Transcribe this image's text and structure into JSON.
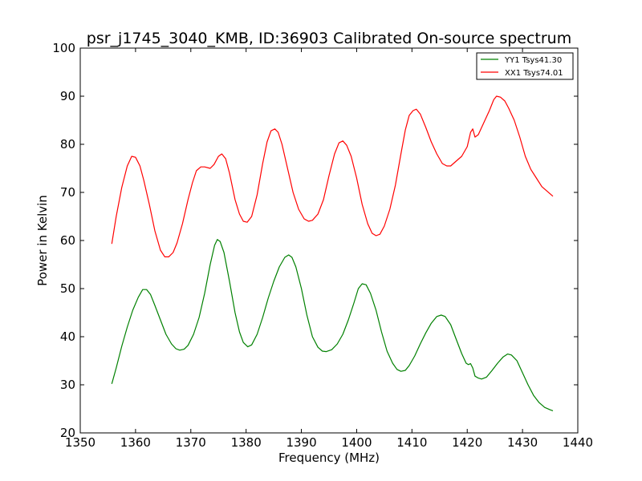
{
  "chart_data": {
    "type": "line",
    "title": "psr_j1745_3040_KMB, ID:36903 Calibrated On-source spectrum",
    "xlabel": "Frequency (MHz)",
    "ylabel": "Power in Kelvin",
    "xlim": [
      1350,
      1440
    ],
    "ylim": [
      20,
      100
    ],
    "xticks": [
      1350,
      1360,
      1370,
      1380,
      1390,
      1400,
      1410,
      1420,
      1430,
      1440
    ],
    "yticks": [
      20,
      30,
      40,
      50,
      60,
      70,
      80,
      90,
      100
    ],
    "grid": false,
    "legend_position": "top-right",
    "series": [
      {
        "name": "YY1 Tsys41.30",
        "color": "#008000",
        "points": [
          [
            1355.7,
            30.2
          ],
          [
            1356.5,
            33.5
          ],
          [
            1357.5,
            38.0
          ],
          [
            1358.5,
            42.0
          ],
          [
            1359.5,
            45.5
          ],
          [
            1360.5,
            48.2
          ],
          [
            1361.3,
            49.8
          ],
          [
            1362.0,
            49.8
          ],
          [
            1362.7,
            48.8
          ],
          [
            1363.5,
            46.5
          ],
          [
            1364.5,
            43.5
          ],
          [
            1365.5,
            40.5
          ],
          [
            1366.5,
            38.5
          ],
          [
            1367.3,
            37.5
          ],
          [
            1368.0,
            37.2
          ],
          [
            1368.8,
            37.4
          ],
          [
            1369.5,
            38.2
          ],
          [
            1370.5,
            40.5
          ],
          [
            1371.5,
            44.0
          ],
          [
            1372.5,
            49.0
          ],
          [
            1373.5,
            55.0
          ],
          [
            1374.3,
            59.0
          ],
          [
            1374.8,
            60.2
          ],
          [
            1375.3,
            59.8
          ],
          [
            1376.0,
            57.5
          ],
          [
            1377.0,
            51.5
          ],
          [
            1378.0,
            45.0
          ],
          [
            1378.8,
            41.0
          ],
          [
            1379.5,
            38.8
          ],
          [
            1380.3,
            37.9
          ],
          [
            1381.0,
            38.3
          ],
          [
            1382.0,
            40.5
          ],
          [
            1383.0,
            44.0
          ],
          [
            1384.0,
            48.0
          ],
          [
            1385.0,
            51.5
          ],
          [
            1386.0,
            54.5
          ],
          [
            1387.0,
            56.5
          ],
          [
            1387.7,
            57.0
          ],
          [
            1388.3,
            56.5
          ],
          [
            1389.0,
            54.5
          ],
          [
            1390.0,
            50.0
          ],
          [
            1391.0,
            44.5
          ],
          [
            1392.0,
            40.0
          ],
          [
            1393.0,
            37.8
          ],
          [
            1393.8,
            37.0
          ],
          [
            1394.5,
            36.9
          ],
          [
            1395.5,
            37.3
          ],
          [
            1396.5,
            38.5
          ],
          [
            1397.5,
            40.5
          ],
          [
            1398.5,
            43.5
          ],
          [
            1399.5,
            47.0
          ],
          [
            1400.3,
            50.0
          ],
          [
            1401.0,
            51.0
          ],
          [
            1401.7,
            50.8
          ],
          [
            1402.5,
            49.0
          ],
          [
            1403.5,
            45.5
          ],
          [
            1404.5,
            41.0
          ],
          [
            1405.5,
            37.0
          ],
          [
            1406.5,
            34.5
          ],
          [
            1407.3,
            33.2
          ],
          [
            1408.0,
            32.8
          ],
          [
            1408.8,
            33.0
          ],
          [
            1409.5,
            34.0
          ],
          [
            1410.5,
            36.0
          ],
          [
            1411.5,
            38.5
          ],
          [
            1412.5,
            40.8
          ],
          [
            1413.5,
            42.8
          ],
          [
            1414.5,
            44.2
          ],
          [
            1415.3,
            44.5
          ],
          [
            1416.0,
            44.2
          ],
          [
            1417.0,
            42.5
          ],
          [
            1418.0,
            39.5
          ],
          [
            1419.0,
            36.5
          ],
          [
            1419.8,
            34.5
          ],
          [
            1420.2,
            34.2
          ],
          [
            1420.6,
            34.4
          ],
          [
            1421.0,
            33.5
          ],
          [
            1421.4,
            31.8
          ],
          [
            1422.0,
            31.4
          ],
          [
            1422.6,
            31.2
          ],
          [
            1423.5,
            31.6
          ],
          [
            1424.5,
            33.0
          ],
          [
            1425.5,
            34.5
          ],
          [
            1426.5,
            35.8
          ],
          [
            1427.3,
            36.4
          ],
          [
            1428.0,
            36.2
          ],
          [
            1429.0,
            35.0
          ],
          [
            1430.0,
            32.5
          ],
          [
            1431.0,
            30.0
          ],
          [
            1432.0,
            27.8
          ],
          [
            1433.0,
            26.3
          ],
          [
            1434.0,
            25.3
          ],
          [
            1435.0,
            24.8
          ],
          [
            1435.5,
            24.6
          ]
        ]
      },
      {
        "name": "XX1 Tsys74.01",
        "color": "#ff0000",
        "points": [
          [
            1355.7,
            59.3
          ],
          [
            1356.5,
            65.0
          ],
          [
            1357.5,
            71.0
          ],
          [
            1358.5,
            75.5
          ],
          [
            1359.3,
            77.5
          ],
          [
            1360.0,
            77.3
          ],
          [
            1360.8,
            75.5
          ],
          [
            1361.5,
            72.5
          ],
          [
            1362.5,
            67.5
          ],
          [
            1363.5,
            62.0
          ],
          [
            1364.5,
            58.0
          ],
          [
            1365.3,
            56.6
          ],
          [
            1366.0,
            56.6
          ],
          [
            1366.8,
            57.5
          ],
          [
            1367.5,
            59.5
          ],
          [
            1368.5,
            63.5
          ],
          [
            1369.5,
            68.5
          ],
          [
            1370.3,
            72.0
          ],
          [
            1371.0,
            74.5
          ],
          [
            1371.8,
            75.3
          ],
          [
            1372.5,
            75.3
          ],
          [
            1373.5,
            75.0
          ],
          [
            1374.2,
            75.8
          ],
          [
            1375.0,
            77.5
          ],
          [
            1375.6,
            78.0
          ],
          [
            1376.3,
            77.0
          ],
          [
            1377.0,
            74.0
          ],
          [
            1378.0,
            68.5
          ],
          [
            1378.8,
            65.5
          ],
          [
            1379.5,
            64.0
          ],
          [
            1380.2,
            63.8
          ],
          [
            1381.0,
            65.0
          ],
          [
            1382.0,
            69.5
          ],
          [
            1383.0,
            76.0
          ],
          [
            1383.8,
            80.5
          ],
          [
            1384.5,
            82.8
          ],
          [
            1385.2,
            83.2
          ],
          [
            1385.8,
            82.5
          ],
          [
            1386.5,
            80.0
          ],
          [
            1387.5,
            75.0
          ],
          [
            1388.5,
            70.0
          ],
          [
            1389.5,
            66.5
          ],
          [
            1390.5,
            64.5
          ],
          [
            1391.3,
            64.0
          ],
          [
            1392.0,
            64.2
          ],
          [
            1393.0,
            65.5
          ],
          [
            1394.0,
            68.5
          ],
          [
            1395.0,
            73.5
          ],
          [
            1396.0,
            78.0
          ],
          [
            1396.8,
            80.3
          ],
          [
            1397.5,
            80.7
          ],
          [
            1398.2,
            79.8
          ],
          [
            1399.0,
            77.5
          ],
          [
            1400.0,
            73.0
          ],
          [
            1401.0,
            67.5
          ],
          [
            1402.0,
            63.5
          ],
          [
            1402.8,
            61.5
          ],
          [
            1403.5,
            61.0
          ],
          [
            1404.2,
            61.3
          ],
          [
            1405.0,
            63.0
          ],
          [
            1406.0,
            66.5
          ],
          [
            1407.0,
            71.5
          ],
          [
            1408.0,
            78.0
          ],
          [
            1408.8,
            83.0
          ],
          [
            1409.5,
            86.0
          ],
          [
            1410.2,
            87.0
          ],
          [
            1410.8,
            87.3
          ],
          [
            1411.5,
            86.3
          ],
          [
            1412.5,
            83.5
          ],
          [
            1413.5,
            80.5
          ],
          [
            1414.5,
            78.0
          ],
          [
            1415.5,
            76.0
          ],
          [
            1416.3,
            75.5
          ],
          [
            1417.0,
            75.5
          ],
          [
            1418.0,
            76.5
          ],
          [
            1419.0,
            77.5
          ],
          [
            1420.0,
            79.5
          ],
          [
            1420.6,
            82.5
          ],
          [
            1421.0,
            83.2
          ],
          [
            1421.4,
            81.5
          ],
          [
            1422.0,
            82.0
          ],
          [
            1423.0,
            84.5
          ],
          [
            1424.0,
            87.0
          ],
          [
            1424.8,
            89.3
          ],
          [
            1425.3,
            90.0
          ],
          [
            1426.0,
            89.8
          ],
          [
            1426.8,
            89.0
          ],
          [
            1427.5,
            87.5
          ],
          [
            1428.5,
            85.0
          ],
          [
            1429.5,
            81.5
          ],
          [
            1430.5,
            77.5
          ],
          [
            1431.5,
            74.8
          ],
          [
            1432.5,
            73.0
          ],
          [
            1433.5,
            71.2
          ],
          [
            1434.5,
            70.2
          ],
          [
            1435.5,
            69.2
          ]
        ]
      }
    ]
  }
}
